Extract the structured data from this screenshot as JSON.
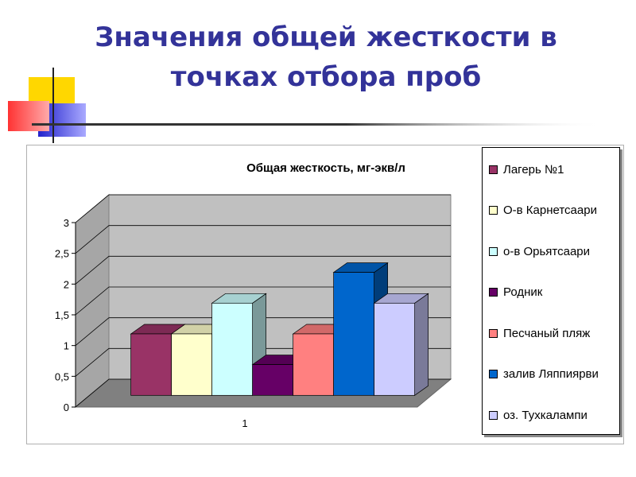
{
  "slide": {
    "title_line1": "Значения общей жесткости в",
    "title_line2": "точках отбора проб"
  },
  "chart_data": {
    "type": "bar",
    "title": "Общая жесткость, мг-экв/л",
    "categories": [
      "1"
    ],
    "ylim": [
      0,
      3
    ],
    "yticks": [
      "0",
      "0,5",
      "1",
      "1,5",
      "2",
      "2,5",
      "3"
    ],
    "grid": true,
    "legend_position": "right",
    "series": [
      {
        "name": "Лагерь №1",
        "values": [
          1.0
        ],
        "color": "#993366"
      },
      {
        "name": "О-в Карнетсаари",
        "values": [
          1.0
        ],
        "color": "#FFFFCC"
      },
      {
        "name": "о-в Орьятсаари",
        "values": [
          1.5
        ],
        "color": "#CCFFFF"
      },
      {
        "name": "Родник",
        "values": [
          0.5
        ],
        "color": "#660066"
      },
      {
        "name": "Песчаный пляж",
        "values": [
          1.0
        ],
        "color": "#FF8080"
      },
      {
        "name": "залив Ляппиярви",
        "values": [
          2.0
        ],
        "color": "#0066CC"
      },
      {
        "name": "оз. Тухкалампи",
        "values": [
          1.5
        ],
        "color": "#CCCCFF"
      }
    ]
  },
  "colors": {
    "title": "#333399",
    "wall": "#C0C0C0",
    "floor": "#808080"
  }
}
